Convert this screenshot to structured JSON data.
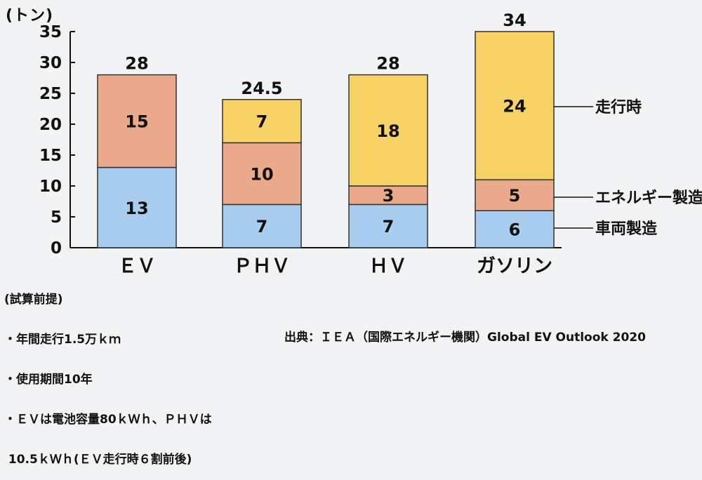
{
  "unit_label": "(トン)",
  "notes": [
    "(試算前提)",
    "・年間走行1.5万ｋｍ",
    "・使用期間10年",
    "・ＥＶは電池容量80ｋＷｈ、ＰＨＶは",
    " 10.5ｋＷｈ(ＥＶ走行時６割前後)"
  ],
  "source": "出典：ＩＥＡ（国際エネルギー機関）Global EV Outlook 2020",
  "chart_data": {
    "type": "bar",
    "stacked": true,
    "categories": [
      "ＥＶ",
      "ＰＨＶ",
      "ＨＶ",
      "ガソリン"
    ],
    "series": [
      {
        "name": "車両製造",
        "color": "#a9cdee",
        "values": [
          13,
          7,
          7,
          6
        ]
      },
      {
        "name": "エネルギー製造",
        "color": "#eba98c",
        "values": [
          15,
          10,
          3,
          5
        ]
      },
      {
        "name": "走行時",
        "color": "#f7d264",
        "values": [
          0,
          7,
          18,
          24
        ]
      }
    ],
    "segment_labels": [
      [
        "13",
        "7",
        "7",
        "6"
      ],
      [
        "15",
        "10",
        "3",
        "5"
      ],
      [
        "",
        "7",
        "18",
        "24"
      ]
    ],
    "totals": [
      "28",
      "24.5",
      "28",
      "34"
    ],
    "ylabel": "(トン)",
    "ylim": [
      0,
      35
    ],
    "yticks": [
      0,
      5,
      10,
      15,
      20,
      25,
      30,
      35
    ],
    "legend_placement": "right, aligned with last bar segments",
    "grid": false
  }
}
